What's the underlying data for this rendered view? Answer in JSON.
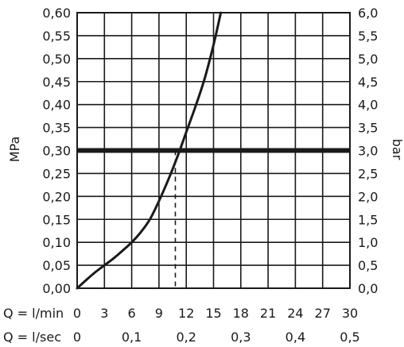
{
  "chart_data": {
    "type": "line",
    "title": "",
    "ylabel_left": "MPa",
    "ylabel_right": "bar",
    "xlabel_lmin": "Q = l/min",
    "xlabel_lsec": "Q = l/sec",
    "x_lmin_ticks": [
      "0",
      "3",
      "6",
      "9",
      "12",
      "15",
      "18",
      "21",
      "24",
      "27",
      "30"
    ],
    "x_lsec_ticks": [
      {
        "value": 0,
        "label": "0"
      },
      {
        "value": 6,
        "label": "0,1"
      },
      {
        "value": 12,
        "label": "0,2"
      },
      {
        "value": 18,
        "label": "0,3"
      },
      {
        "value": 24,
        "label": "0,4"
      },
      {
        "value": 30,
        "label": "0,5"
      }
    ],
    "y_left_ticks": [
      "0,00",
      "0,05",
      "0,10",
      "0,15",
      "0,20",
      "0,25",
      "0,30",
      "0,35",
      "0,40",
      "0,45",
      "0,50",
      "0,55",
      "0,60"
    ],
    "y_right_ticks": [
      "0,0",
      "0,5",
      "1,0",
      "1,5",
      "2,0",
      "2,5",
      "3,0",
      "3,5",
      "4,0",
      "4,5",
      "5,0",
      "5,5",
      "6,0"
    ],
    "xlim": [
      0,
      30
    ],
    "ylim": [
      0,
      0.6
    ],
    "grid": true,
    "series": [
      {
        "x": [
          0,
          1,
          2,
          3,
          4,
          5,
          6,
          7,
          8,
          9,
          10,
          11,
          12,
          13,
          14,
          15,
          15.8
        ],
        "y": [
          0,
          0.018,
          0.035,
          0.05,
          0.065,
          0.082,
          0.1,
          0.122,
          0.15,
          0.19,
          0.235,
          0.285,
          0.34,
          0.395,
          0.455,
          0.53,
          0.6
        ]
      }
    ],
    "reference_line": {
      "y": 0.3
    },
    "drop_line": {
      "x": 10.8,
      "y": 0.3
    }
  }
}
